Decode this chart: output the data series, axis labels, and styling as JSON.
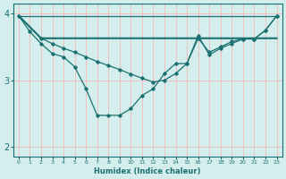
{
  "xlabel": "Humidex (Indice chaleur)",
  "bg_color": "#d4eeee",
  "line_color": "#1a7070",
  "grid_color": "#f5b8b8",
  "xlim": [
    -0.5,
    23.5
  ],
  "ylim": [
    1.85,
    4.15
  ],
  "yticks": [
    2,
    3,
    4
  ],
  "xticks": [
    0,
    1,
    2,
    3,
    4,
    5,
    6,
    7,
    8,
    9,
    10,
    11,
    12,
    13,
    14,
    15,
    16,
    17,
    18,
    19,
    20,
    21,
    22,
    23
  ],
  "series": [
    {
      "x": [
        0,
        1,
        2,
        3,
        4,
        5,
        6,
        7,
        8,
        9,
        10,
        11,
        12,
        13,
        14,
        15,
        16,
        17,
        18,
        19,
        20,
        21,
        22,
        23
      ],
      "y": [
        3.97,
        3.73,
        3.55,
        3.4,
        3.35,
        3.2,
        2.87,
        2.47,
        2.47,
        2.47,
        2.57,
        2.77,
        2.87,
        3.1,
        3.25,
        3.25,
        3.67,
        3.38,
        3.48,
        3.55,
        3.62,
        3.62,
        3.75,
        3.97
      ],
      "marker": true,
      "linewidth": 0.9
    },
    {
      "x": [
        0,
        2,
        3,
        4,
        5,
        6,
        7,
        8,
        9,
        10,
        11,
        12,
        13,
        14,
        15,
        16,
        17,
        18,
        19,
        20,
        21,
        22,
        23
      ],
      "y": [
        3.97,
        3.63,
        3.63,
        3.63,
        3.63,
        3.63,
        3.63,
        3.63,
        3.63,
        3.63,
        3.63,
        3.63,
        3.63,
        3.63,
        3.63,
        3.63,
        3.63,
        3.63,
        3.63,
        3.63,
        3.63,
        3.63,
        3.63
      ],
      "marker": false,
      "linewidth": 1.5
    },
    {
      "x": [
        0,
        23
      ],
      "y": [
        3.97,
        3.97
      ],
      "marker": false,
      "linewidth": 0.9
    },
    {
      "x": [
        2,
        3,
        4,
        5,
        6,
        7,
        8,
        9,
        10,
        11,
        12,
        13,
        14,
        15,
        16,
        17,
        18,
        19,
        20,
        21,
        22,
        23
      ],
      "y": [
        3.63,
        3.55,
        3.48,
        3.42,
        3.35,
        3.28,
        3.22,
        3.16,
        3.09,
        3.03,
        2.97,
        3.0,
        3.1,
        3.25,
        3.63,
        3.42,
        3.5,
        3.58,
        3.62,
        3.62,
        3.75,
        3.97
      ],
      "marker": true,
      "linewidth": 0.9
    }
  ]
}
